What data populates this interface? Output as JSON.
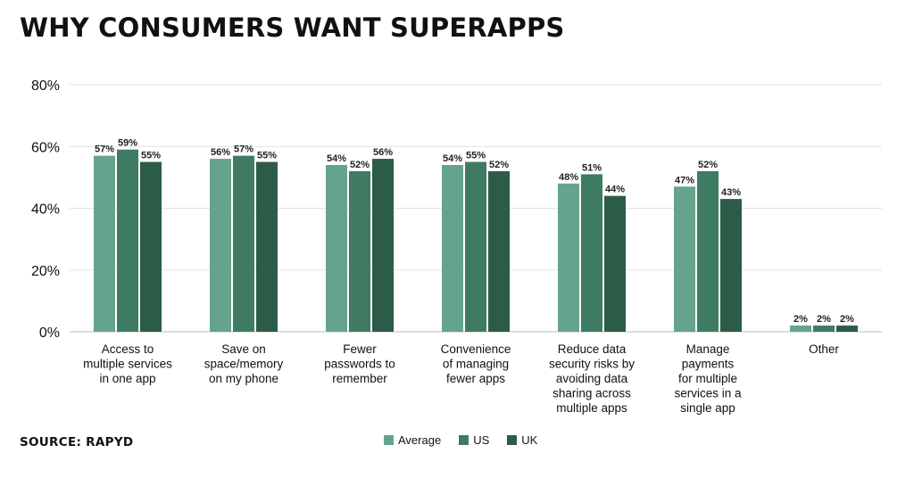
{
  "title": "WHY CONSUMERS WANT SUPERAPPS",
  "source": "SOURCE: RAPYD",
  "colors": {
    "Average": "#65a38c",
    "US": "#3f7b63",
    "UK": "#2c5c48",
    "grid": "#e2e2e2",
    "axis": "#bdbdbd"
  },
  "chart_data": {
    "type": "bar",
    "title": "WHY CONSUMERS WANT SUPERAPPS",
    "xlabel": "",
    "ylabel": "",
    "ylim": [
      0,
      80
    ],
    "yticks": [
      "0%",
      "20%",
      "40%",
      "60%",
      "80%"
    ],
    "grid": true,
    "legend_position": "bottom",
    "categories": [
      [
        "Access to",
        "multiple services",
        "in one app"
      ],
      [
        "Save on",
        "space/memory",
        "on my phone"
      ],
      [
        "Fewer",
        "passwords to",
        "remember"
      ],
      [
        "Convenience",
        "of managing",
        "fewer apps"
      ],
      [
        "Reduce data",
        "security risks by",
        "avoiding data",
        "sharing across",
        "multiple apps"
      ],
      [
        "Manage",
        "payments",
        "for multiple",
        "services in a",
        "single app"
      ],
      [
        "Other"
      ]
    ],
    "series": [
      {
        "name": "Average",
        "values": [
          57,
          56,
          54,
          54,
          48,
          47,
          2
        ],
        "labels": [
          "57%",
          "56%",
          "54%",
          "54%",
          "48%",
          "47%",
          "2%"
        ]
      },
      {
        "name": "US",
        "values": [
          59,
          57,
          52,
          55,
          51,
          52,
          2
        ],
        "labels": [
          "59%",
          "57%",
          "52%",
          "55%",
          "51%",
          "52%",
          "2%"
        ]
      },
      {
        "name": "UK",
        "values": [
          55,
          55,
          56,
          52,
          44,
          43,
          2
        ],
        "labels": [
          "55%",
          "55%",
          "56%",
          "52%",
          "44%",
          "43%",
          "2%"
        ]
      }
    ]
  }
}
